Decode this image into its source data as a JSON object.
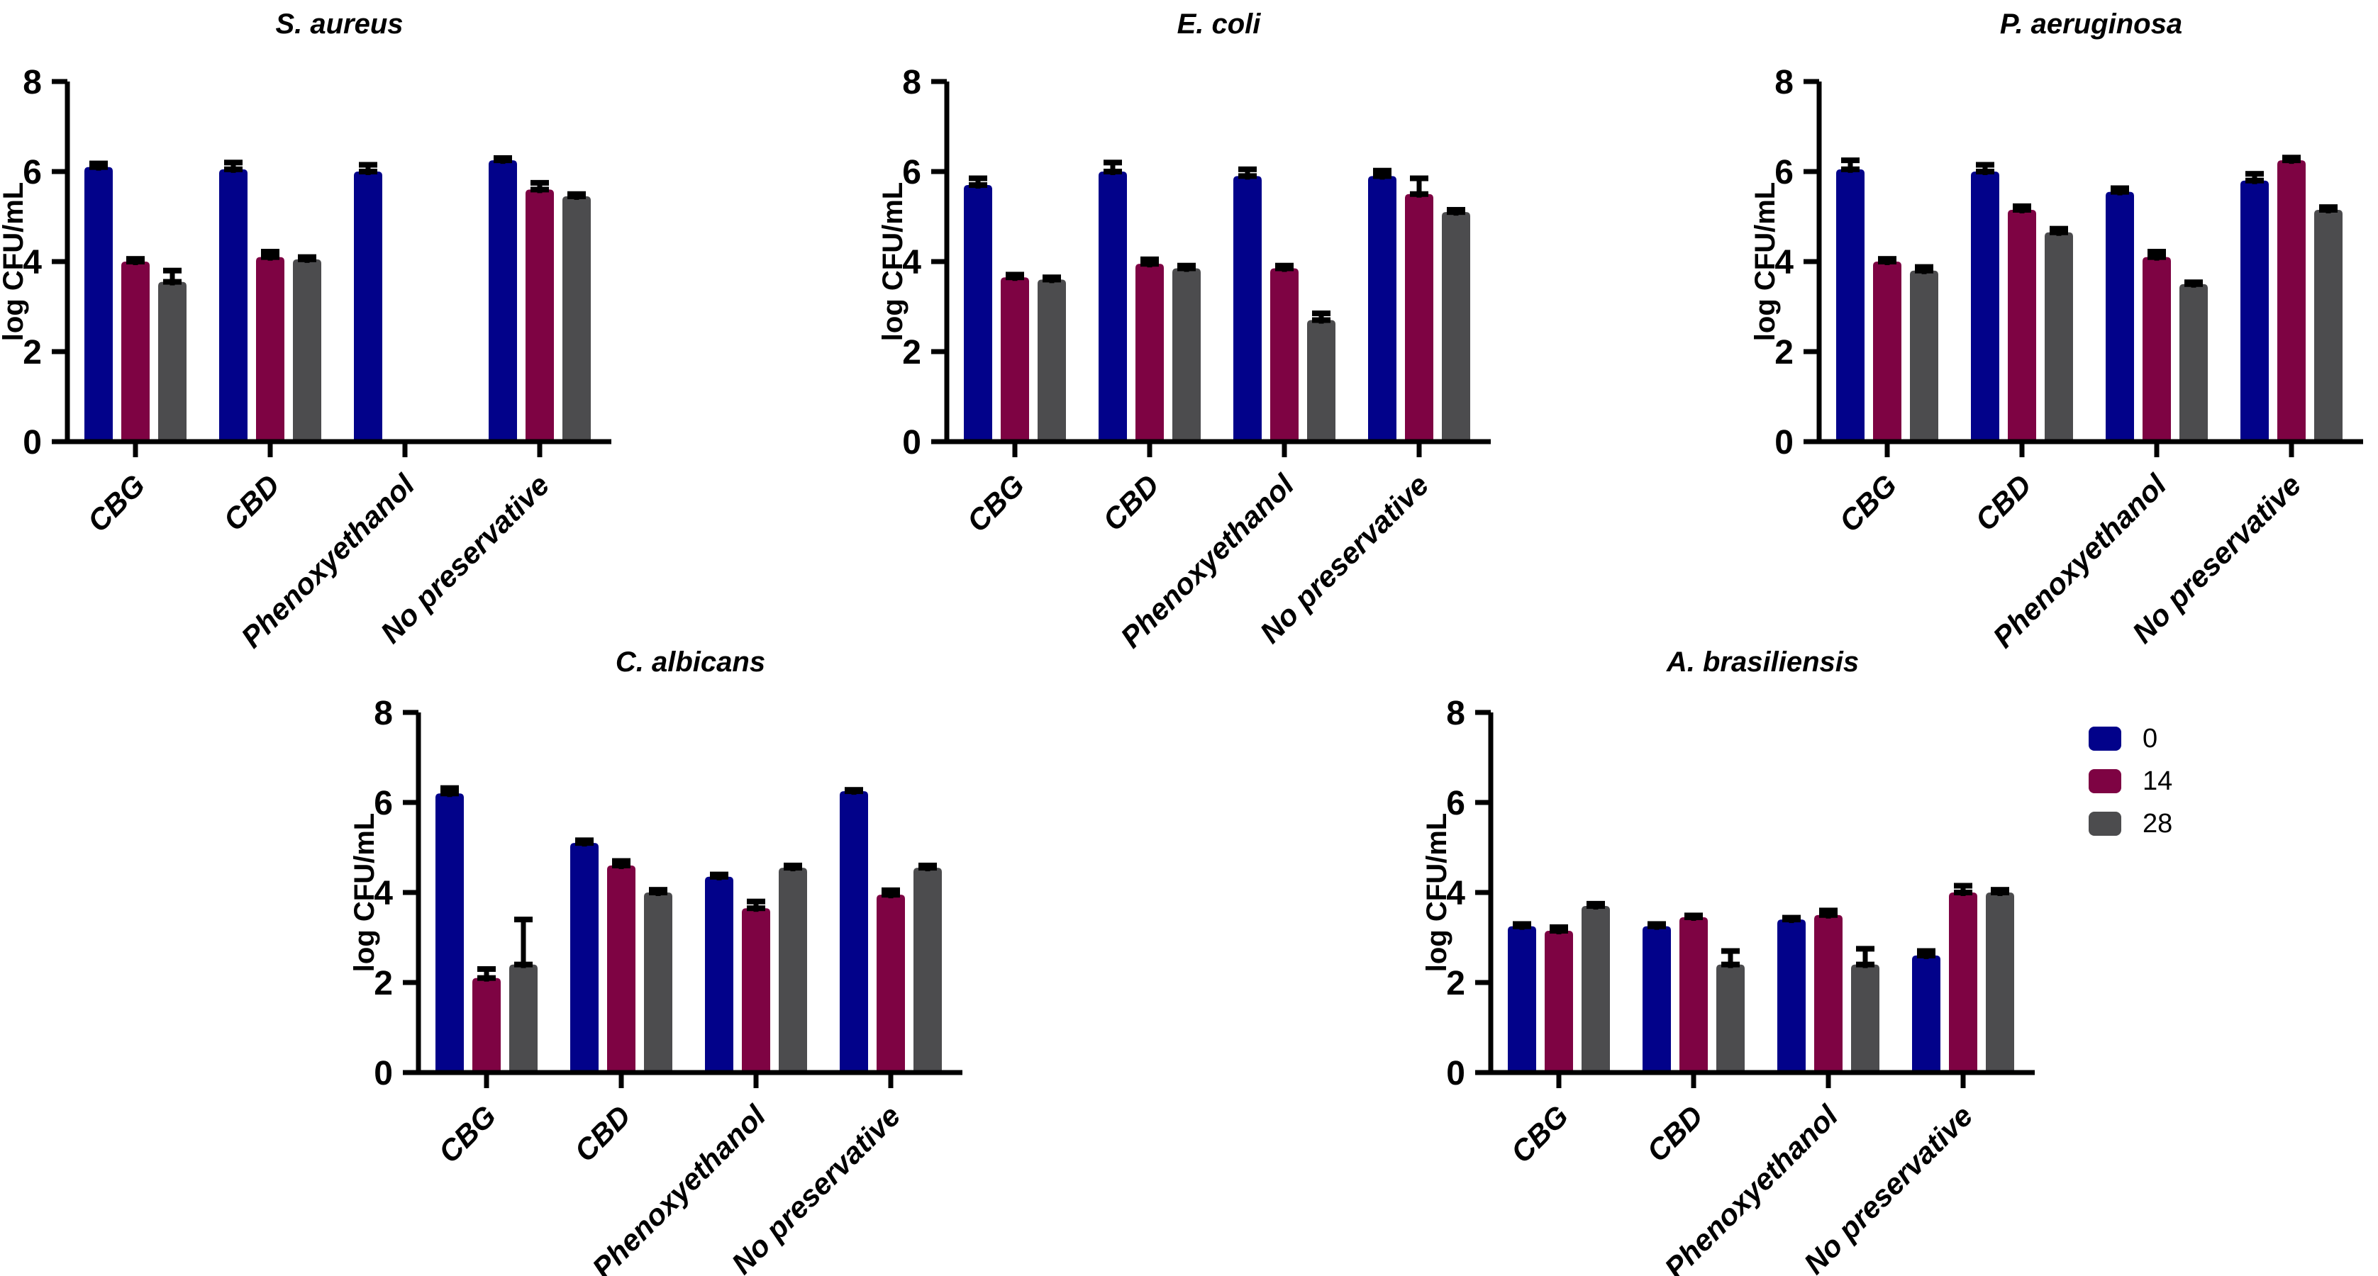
{
  "figure": {
    "background": "#ffffff",
    "ylabel": "log CFU/mL",
    "ylim": [
      0,
      8
    ],
    "yticks": [
      0,
      2,
      4,
      6,
      8
    ],
    "categories": [
      "CBG",
      "CBD",
      "Phenoxyethanol",
      "No preservative"
    ],
    "series_names": [
      "0",
      "14",
      "28"
    ],
    "colors": {
      "day0": "#02028A",
      "day14": "#7E0343",
      "day28": "#4C4C4E",
      "axis": "#000000"
    }
  },
  "legend": {
    "items": [
      {
        "label": "0",
        "color": "#02028A"
      },
      {
        "label": "14",
        "color": "#7E0343"
      },
      {
        "label": "28",
        "color": "#4C4C4E"
      }
    ],
    "position": "right of A. brasiliensis chart"
  },
  "chart_data": [
    {
      "type": "bar",
      "title": "S. aureus",
      "xlabel": "",
      "ylabel": "log CFU/mL",
      "ylim": [
        0,
        8
      ],
      "yticks": [
        0,
        2,
        4,
        6,
        8
      ],
      "grid": false,
      "categories": [
        "CBG",
        "CBD",
        "Phenoxyethanol",
        "No preservative"
      ],
      "series": [
        {
          "name": "0",
          "color": "#02028A",
          "values": [
            6.1,
            6.05,
            6.0,
            6.25
          ],
          "errors": [
            0.08,
            0.15,
            0.15,
            0.05
          ]
        },
        {
          "name": "14",
          "color": "#7E0343",
          "values": [
            4.0,
            4.1,
            0,
            5.6
          ],
          "errors": [
            0.06,
            0.12,
            0,
            0.15
          ]
        },
        {
          "name": "28",
          "color": "#4C4C4E",
          "values": [
            3.55,
            4.05,
            0,
            5.45
          ],
          "errors": [
            0.25,
            0.05,
            0,
            0.05
          ]
        }
      ]
    },
    {
      "type": "bar",
      "title": "E. coli",
      "xlabel": "",
      "ylabel": "log CFU/mL",
      "ylim": [
        0,
        8
      ],
      "yticks": [
        0,
        2,
        4,
        6,
        8
      ],
      "grid": false,
      "categories": [
        "CBG",
        "CBD",
        "Phenoxyethanol",
        "No preservative"
      ],
      "series": [
        {
          "name": "0",
          "color": "#02028A",
          "values": [
            5.7,
            6.0,
            5.9,
            5.9
          ],
          "errors": [
            0.15,
            0.2,
            0.15,
            0.12
          ]
        },
        {
          "name": "14",
          "color": "#7E0343",
          "values": [
            3.65,
            3.95,
            3.85,
            5.5
          ],
          "errors": [
            0.06,
            0.1,
            0.06,
            0.35
          ]
        },
        {
          "name": "28",
          "color": "#4C4C4E",
          "values": [
            3.6,
            3.85,
            2.7,
            5.1
          ],
          "errors": [
            0.05,
            0.06,
            0.15,
            0.05
          ]
        }
      ]
    },
    {
      "type": "bar",
      "title": "P. aeruginosa",
      "xlabel": "",
      "ylabel": "log CFU/mL",
      "ylim": [
        0,
        8
      ],
      "yticks": [
        0,
        2,
        4,
        6,
        8
      ],
      "grid": false,
      "categories": [
        "CBG",
        "CBD",
        "Phenoxyethanol",
        "No preservative"
      ],
      "series": [
        {
          "name": "0",
          "color": "#02028A",
          "values": [
            6.05,
            6.0,
            5.55,
            5.8
          ],
          "errors": [
            0.2,
            0.15,
            0.08,
            0.15
          ]
        },
        {
          "name": "14",
          "color": "#7E0343",
          "values": [
            4.0,
            5.15,
            4.1,
            6.25
          ],
          "errors": [
            0.06,
            0.08,
            0.12,
            0.06
          ]
        },
        {
          "name": "28",
          "color": "#4C4C4E",
          "values": [
            3.8,
            4.65,
            3.5,
            5.15
          ],
          "errors": [
            0.08,
            0.08,
            0.04,
            0.06
          ]
        }
      ]
    },
    {
      "type": "bar",
      "title": "C. albicans",
      "xlabel": "",
      "ylabel": "log CFU/mL",
      "ylim": [
        0,
        8
      ],
      "yticks": [
        0,
        2,
        4,
        6,
        8
      ],
      "grid": false,
      "categories": [
        "CBG",
        "CBD",
        "Phenoxyethanol",
        "No preservative"
      ],
      "series": [
        {
          "name": "0",
          "color": "#02028A",
          "values": [
            6.2,
            5.1,
            4.35,
            6.25
          ],
          "errors": [
            0.12,
            0.06,
            0.05,
            0.03
          ]
        },
        {
          "name": "14",
          "color": "#7E0343",
          "values": [
            2.1,
            4.6,
            3.65,
            3.95
          ],
          "errors": [
            0.2,
            0.1,
            0.15,
            0.1
          ]
        },
        {
          "name": "28",
          "color": "#4C4C4E",
          "values": [
            2.4,
            4.0,
            4.55,
            4.55
          ],
          "errors": [
            1.0,
            0.06,
            0.05,
            0.05
          ]
        }
      ]
    },
    {
      "type": "bar",
      "title": "A. brasiliensis",
      "xlabel": "",
      "ylabel": "log CFU/mL",
      "ylim": [
        0,
        8
      ],
      "yticks": [
        0,
        2,
        4,
        6,
        8
      ],
      "grid": false,
      "categories": [
        "CBG",
        "CBD",
        "Phenoxyethanol",
        "No preservative"
      ],
      "series": [
        {
          "name": "0",
          "color": "#02028A",
          "values": [
            3.25,
            3.25,
            3.4,
            2.6
          ],
          "errors": [
            0.05,
            0.05,
            0.04,
            0.1
          ]
        },
        {
          "name": "14",
          "color": "#7E0343",
          "values": [
            3.15,
            3.45,
            3.5,
            4.0
          ],
          "errors": [
            0.08,
            0.04,
            0.1,
            0.15
          ]
        },
        {
          "name": "28",
          "color": "#4C4C4E",
          "values": [
            3.7,
            2.4,
            2.4,
            4.0
          ],
          "errors": [
            0.05,
            0.3,
            0.35,
            0.06
          ]
        }
      ]
    }
  ]
}
